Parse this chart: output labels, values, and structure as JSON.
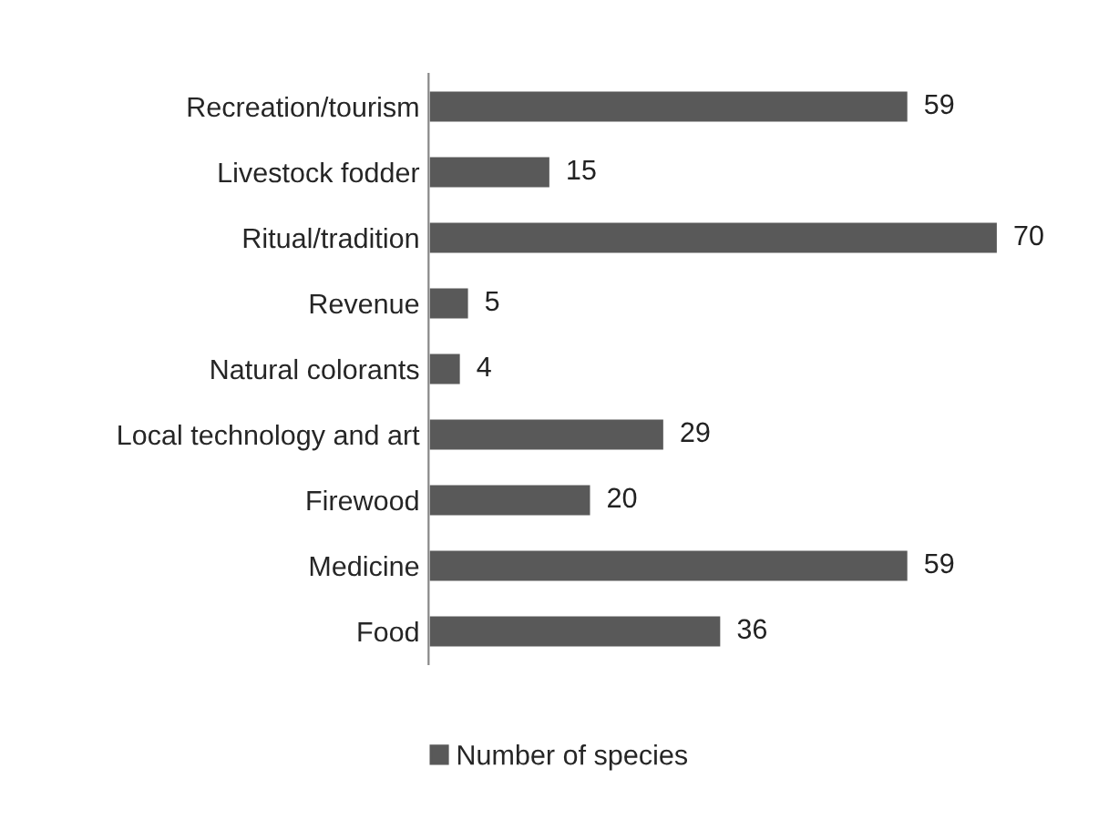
{
  "chart_data": {
    "type": "bar",
    "orientation": "horizontal",
    "categories": [
      "Recreation/tourism",
      "Livestock fodder",
      "Ritual/tradition",
      "Revenue",
      "Natural colorants",
      "Local technology and art",
      "Firewood",
      "Medicine",
      "Food"
    ],
    "series": [
      {
        "name": "Number of species",
        "color": "#595959",
        "values": [
          59,
          15,
          70,
          5,
          4,
          29,
          20,
          59,
          36
        ]
      }
    ],
    "data_labels": true,
    "legend": "bottom",
    "grid": false
  }
}
